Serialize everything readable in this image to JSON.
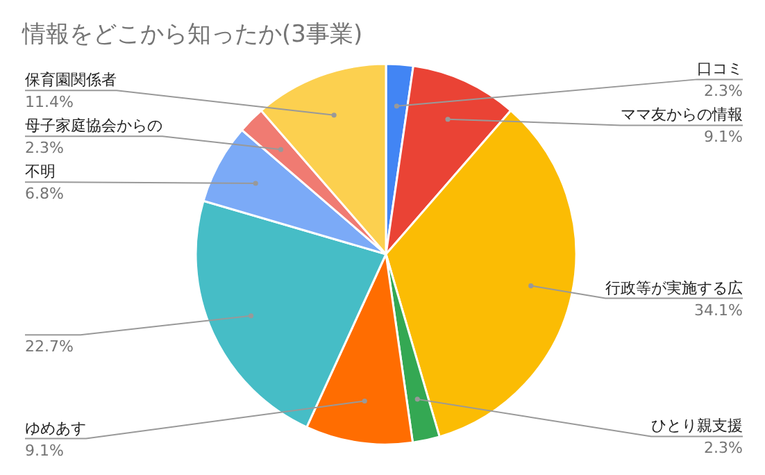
{
  "chart_data": {
    "type": "pie",
    "title": "情報をどこから知ったか(3事業)",
    "categories": [
      "口コミ",
      "ママ友からの情報",
      "行政等が実施する広",
      "ひとり親支援",
      "ゆめあす",
      null,
      "不明",
      "母子家庭協会からの",
      "保育園関係者"
    ],
    "values": [
      2.3,
      9.1,
      34.1,
      2.3,
      9.1,
      22.7,
      6.8,
      2.3,
      11.4
    ],
    "value_labels": [
      "2.3%",
      "9.1%",
      "34.1%",
      "2.3%",
      "9.1%",
      "22.7%",
      "6.8%",
      "2.3%",
      "11.4%"
    ],
    "colors": [
      "#4285f4",
      "#ea4335",
      "#fbbc04",
      "#34a853",
      "#ff6d01",
      "#46bdc6",
      "#7baaf7",
      "#f07b72",
      "#fcd04f"
    ]
  }
}
